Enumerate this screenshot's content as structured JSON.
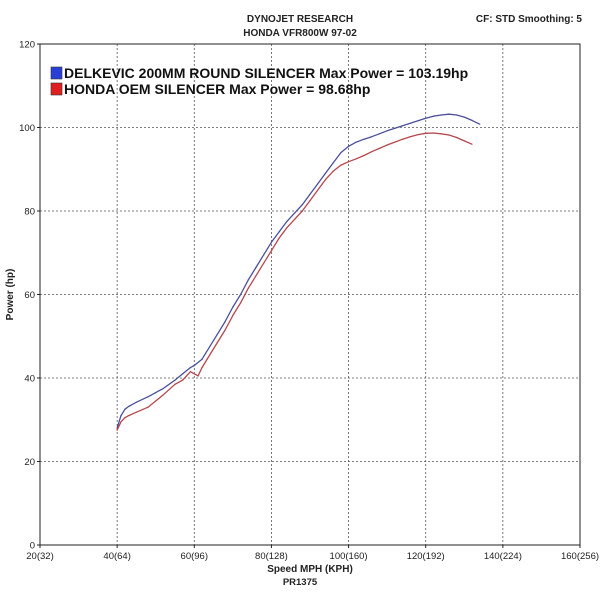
{
  "header": {
    "company": "DYNOJET RESEARCH",
    "model": "HONDA VFR800W 97-02",
    "settings": "CF: STD  Smoothing: 5"
  },
  "footer": {
    "run_id": "PR1375"
  },
  "chart_data": {
    "type": "line",
    "xlabel": "Speed MPH (KPH)",
    "ylabel": "Power (hp)",
    "xlim": [
      20,
      160
    ],
    "ylim": [
      0,
      120
    ],
    "x_ticks": [
      {
        "value": 20,
        "label": "20(32)"
      },
      {
        "value": 40,
        "label": "40(64)"
      },
      {
        "value": 60,
        "label": "60(96)"
      },
      {
        "value": 80,
        "label": "80(128)"
      },
      {
        "value": 100,
        "label": "100(160)"
      },
      {
        "value": 120,
        "label": "120(192)"
      },
      {
        "value": 140,
        "label": "140(224)"
      },
      {
        "value": 160,
        "label": "160(256)"
      }
    ],
    "y_ticks": [
      0,
      20,
      40,
      60,
      80,
      100,
      120
    ],
    "grid": true,
    "legend_position": "top-left",
    "series": [
      {
        "name": "DELKEVIC 200MM ROUND SILENCER Max Power = 103.19hp",
        "color": "#4a4f9c",
        "swatch": "#2a3fd6",
        "x": [
          40,
          41,
          42,
          43,
          45,
          48,
          50,
          52,
          55,
          57,
          59,
          60,
          62,
          64,
          66,
          68,
          70,
          72,
          74,
          76,
          78,
          80,
          82,
          84,
          86,
          88,
          90,
          92,
          94,
          96,
          98,
          100,
          102,
          104,
          106,
          108,
          110,
          112,
          114,
          116,
          118,
          120,
          122,
          124,
          126,
          128,
          130,
          132,
          134
        ],
        "values": [
          28,
          31,
          32.5,
          33.2,
          34.2,
          35.5,
          36.5,
          37.5,
          39.5,
          41,
          42.5,
          43,
          44.5,
          47.5,
          50.5,
          53.5,
          57,
          60,
          63.5,
          66.5,
          69.5,
          72.5,
          75,
          77.5,
          79.5,
          81.5,
          84,
          86.5,
          89,
          91.5,
          94,
          95.5,
          96.5,
          97.2,
          97.8,
          98.5,
          99.2,
          99.8,
          100.4,
          101,
          101.6,
          102.2,
          102.7,
          103,
          103.19,
          103,
          102.5,
          101.7,
          100.8
        ]
      },
      {
        "name": "HONDA OEM SILENCER Max Power = 98.68hp",
        "color": "#b5474c",
        "swatch": "#e02020",
        "x": [
          40,
          41,
          42,
          43,
          45,
          48,
          50,
          52,
          55,
          57,
          59,
          60,
          61,
          62,
          64,
          66,
          68,
          70,
          72,
          74,
          76,
          78,
          80,
          82,
          84,
          86,
          88,
          90,
          92,
          94,
          96,
          98,
          100,
          102,
          104,
          106,
          108,
          110,
          112,
          114,
          116,
          118,
          120,
          122,
          124,
          126,
          128,
          130,
          132
        ],
        "values": [
          27.5,
          29.5,
          30.5,
          31,
          31.8,
          33,
          34.5,
          36,
          38.5,
          39.5,
          41.5,
          41,
          40.5,
          42.5,
          45.5,
          48.5,
          51.5,
          55,
          58,
          61.5,
          64.5,
          67.5,
          70.5,
          73.5,
          76,
          78,
          80,
          82.5,
          85,
          87.5,
          89.5,
          91,
          91.8,
          92.5,
          93.3,
          94.2,
          95,
          95.8,
          96.5,
          97.2,
          97.8,
          98.3,
          98.6,
          98.68,
          98.5,
          98.2,
          97.6,
          96.8,
          96
        ]
      }
    ]
  }
}
